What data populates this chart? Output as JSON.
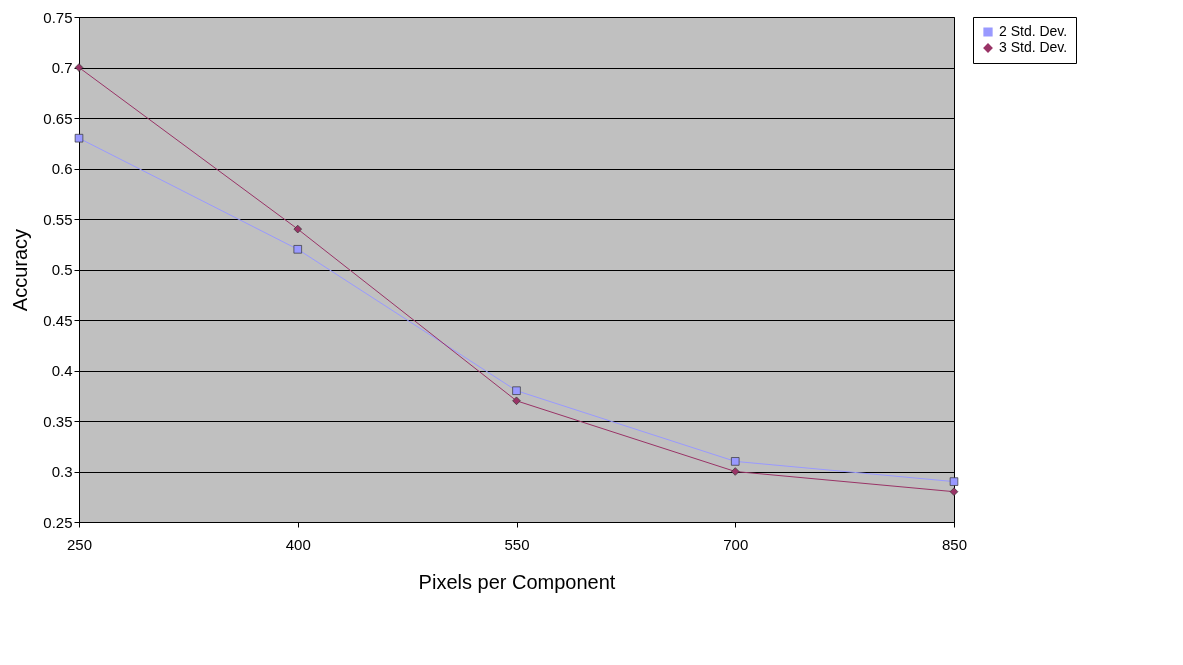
{
  "chart_data": {
    "type": "line",
    "xlabel": "Pixels per Component",
    "ylabel": "Accuracy",
    "x": [
      250,
      400,
      550,
      700,
      850
    ],
    "series": [
      {
        "name": "2 Std. Dev.",
        "color": "#9999ff",
        "marker": "square",
        "values": [
          0.63,
          0.52,
          0.38,
          0.31,
          0.29
        ]
      },
      {
        "name": "3 Std. Dev.",
        "color": "#993366",
        "marker": "diamond",
        "values": [
          0.7,
          0.54,
          0.37,
          0.3,
          0.28
        ]
      }
    ],
    "xlim": [
      250,
      850
    ],
    "xticks": [
      250,
      400,
      550,
      700,
      850
    ],
    "ylim": [
      0.25,
      0.75
    ],
    "yticks": [
      0.25,
      0.3,
      0.35,
      0.4,
      0.45,
      0.5,
      0.55,
      0.6,
      0.65,
      0.7,
      0.75
    ],
    "grid": "y",
    "legend": "right",
    "line_style": "solid"
  }
}
